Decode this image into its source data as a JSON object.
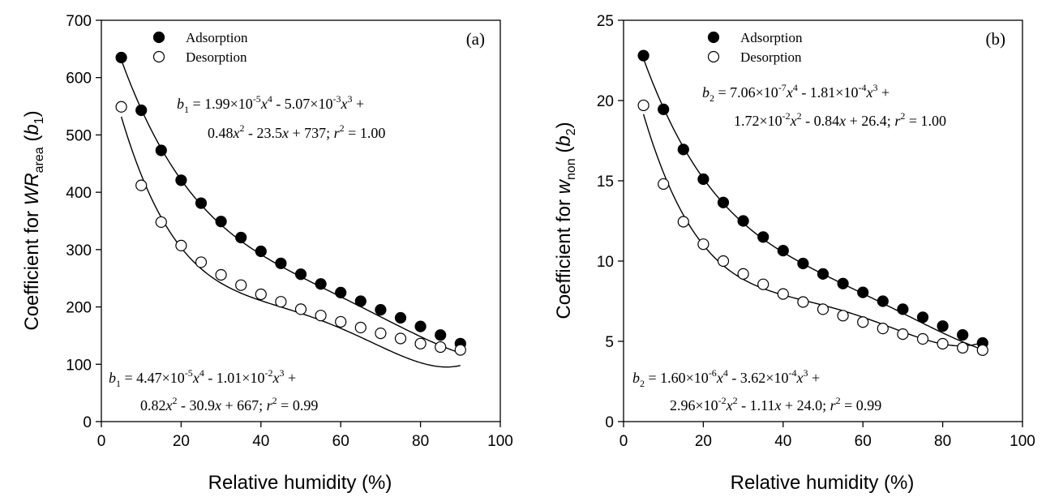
{
  "chart_data": [
    {
      "type": "scatter",
      "panel_label": "(a)",
      "xlabel": "Relative humidity (%)",
      "ylabel": {
        "pre": "Coefficient for ",
        "var": "WR",
        "sub": "area",
        "post": " (",
        "coef": "b",
        "coef_sub": "1",
        "end": ")"
      },
      "xlim": [
        0,
        100
      ],
      "ylim": [
        0,
        700
      ],
      "xticks": [
        0,
        20,
        40,
        60,
        80,
        100
      ],
      "yticks": [
        0,
        100,
        200,
        300,
        400,
        500,
        600,
        700
      ],
      "grid": false,
      "legend": {
        "placement": "top-left",
        "entries": [
          "Adsorption",
          "Desorption"
        ]
      },
      "series": [
        {
          "name": "Adsorption",
          "marker": "filled-circle",
          "x": [
            5,
            10,
            15,
            20,
            25,
            30,
            35,
            40,
            45,
            50,
            55,
            60,
            65,
            70,
            75,
            80,
            85,
            90
          ],
          "y": [
            635,
            543,
            473,
            421,
            381,
            349,
            321,
            297,
            276,
            257,
            240,
            225,
            210,
            195,
            181,
            166,
            151,
            136
          ],
          "fit": {
            "a4": 1.99e-05,
            "a3": -0.00507,
            "a2": 0.48,
            "a1": -23.5,
            "a0": 737
          }
        },
        {
          "name": "Desorption",
          "marker": "open-circle",
          "x": [
            5,
            10,
            15,
            20,
            25,
            30,
            35,
            40,
            45,
            50,
            55,
            60,
            65,
            70,
            75,
            80,
            85,
            90
          ],
          "y": [
            549,
            412,
            348,
            307,
            278,
            256,
            238,
            222,
            209,
            196,
            185,
            174,
            164,
            154,
            145,
            136,
            130,
            125
          ],
          "fit": {
            "a4": 4.47e-05,
            "a3": -0.0101,
            "a2": 0.82,
            "a1": -30.9,
            "a0": 667
          }
        }
      ],
      "annotations": [
        {
          "coef": "b",
          "coef_sub": "1",
          "line1": [
            " = 1.99×10",
            "-5",
            "x",
            "4",
            " - 5.07×10",
            "-3",
            "x",
            "3",
            " +"
          ],
          "line2": [
            "0.48",
            "x",
            "2",
            " - 23.5",
            "x",
            " + 737;  ",
            "r",
            "2",
            " = 1.00"
          ]
        },
        {
          "coef": "b",
          "coef_sub": "1",
          "line1": [
            " = 4.47×10",
            "-5",
            "x",
            "4",
            " - 1.01×10",
            "-2",
            "x",
            "3",
            " +"
          ],
          "line2": [
            "0.82",
            "x",
            "2",
            " - 30.9",
            "x",
            " + 667;  ",
            "r",
            "2",
            " = 0.99"
          ]
        }
      ]
    },
    {
      "type": "scatter",
      "panel_label": "(b)",
      "xlabel": "Relative humidity (%)",
      "ylabel": {
        "pre": "Coefficient for ",
        "var": "w",
        "sub": "non",
        "post": " (",
        "coef": "b",
        "coef_sub": "2",
        "end": ")"
      },
      "xlim": [
        0,
        100
      ],
      "ylim": [
        0,
        25
      ],
      "xticks": [
        0,
        20,
        40,
        60,
        80,
        100
      ],
      "yticks": [
        0,
        5,
        10,
        15,
        20,
        25
      ],
      "grid": false,
      "legend": {
        "placement": "top-left",
        "entries": [
          "Adsorption",
          "Desorption"
        ]
      },
      "series": [
        {
          "name": "Adsorption",
          "marker": "filled-circle",
          "x": [
            5,
            10,
            15,
            20,
            25,
            30,
            35,
            40,
            45,
            50,
            55,
            60,
            65,
            70,
            75,
            80,
            85,
            90
          ],
          "y": [
            22.8,
            19.45,
            16.95,
            15.1,
            13.65,
            12.5,
            11.5,
            10.65,
            9.85,
            9.2,
            8.6,
            8.05,
            7.5,
            7.0,
            6.5,
            5.95,
            5.4,
            4.9
          ],
          "fit": {
            "a4": 7.06e-07,
            "a3": -0.000181,
            "a2": 0.0172,
            "a1": -0.84,
            "a0": 26.4
          }
        },
        {
          "name": "Desorption",
          "marker": "open-circle",
          "x": [
            5,
            10,
            15,
            20,
            25,
            30,
            35,
            40,
            45,
            50,
            55,
            60,
            65,
            70,
            75,
            80,
            85,
            90
          ],
          "y": [
            19.7,
            14.8,
            12.45,
            11.05,
            10.0,
            9.2,
            8.55,
            7.95,
            7.45,
            7.0,
            6.6,
            6.2,
            5.8,
            5.45,
            5.15,
            4.85,
            4.6,
            4.45
          ],
          "fit": {
            "a4": 1.6e-06,
            "a3": -0.000362,
            "a2": 0.0296,
            "a1": -1.11,
            "a0": 24.0
          }
        }
      ],
      "annotations": [
        {
          "coef": "b",
          "coef_sub": "2",
          "line1": [
            " = 7.06×10",
            "-7",
            "x",
            "4",
            " - 1.81×10",
            "-4",
            "x",
            "3",
            " +"
          ],
          "line2": [
            "1.72×10",
            "-2",
            "x",
            "2",
            " - 0.84",
            "x",
            " + 26.4; ",
            "r",
            "2",
            " = 1.00"
          ]
        },
        {
          "coef": "b",
          "coef_sub": "2",
          "line1": [
            " = 1.60×10",
            "-6",
            "x",
            "4",
            " - 3.62×10",
            "-4",
            "x",
            "3",
            " +"
          ],
          "line2": [
            "2.96×10",
            "-2",
            "x",
            "2",
            " - 1.11",
            "x",
            " + 24.0; ",
            "r",
            "2",
            " = 0.99"
          ]
        }
      ]
    }
  ]
}
